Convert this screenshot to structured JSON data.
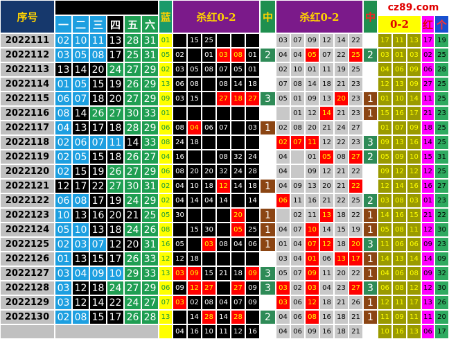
{
  "header": {
    "serial": "序号",
    "ball_columns": [
      "一",
      "二",
      "三",
      "四",
      "五",
      "六"
    ],
    "blue": "蓝",
    "block1_title": "杀红0-2",
    "block1_hit": "中",
    "block2_title": "杀红0-2",
    "block2_hit": "中",
    "logo": "cz89.com",
    "block3_title": "0-2",
    "block3_col4": "红",
    "block3_col5": "个"
  },
  "ball_zone_colors": [
    "#1d9fe0",
    "#000000",
    "#1f9e52"
  ],
  "hit_colors": {
    "1": "#8b4513",
    "2": "#2e8b57",
    "3": "#2e8b57"
  },
  "rows": [
    {
      "issue": "2022111",
      "reds": [
        "02",
        "10",
        "11",
        "13",
        "28",
        "31"
      ],
      "blue": "01",
      "kill1": [
        null,
        "15",
        "25",
        null,
        null,
        null
      ],
      "hit1": null,
      "kill2": [
        "03",
        "07",
        "09",
        "12",
        "14",
        "22"
      ],
      "hit2": null,
      "extra": [
        "17",
        "11",
        "13",
        "17",
        "19"
      ]
    },
    {
      "issue": "2022112",
      "reds": [
        "03",
        "05",
        "08",
        "17",
        "25",
        "31"
      ],
      "blue": "05",
      "kill1": [
        "02",
        null,
        "01",
        "03",
        "08",
        "01"
      ],
      "hit1": 2,
      "kill2": [
        "04",
        "04",
        "05",
        "07",
        "22",
        "25"
      ],
      "hit2": 2,
      "extra": [
        "03",
        "01",
        "03",
        "02",
        "25"
      ]
    },
    {
      "issue": "2022113",
      "reds": [
        "13",
        "14",
        "20",
        "24",
        "27",
        "29"
      ],
      "blue": "02",
      "kill1": [
        "03",
        "05",
        "08",
        "07",
        "05",
        "01"
      ],
      "hit1": null,
      "kill2": [
        "02",
        "10",
        "01",
        "11",
        "19",
        "25"
      ],
      "hit2": null,
      "extra": [
        "04",
        "06",
        "09",
        "06",
        "28"
      ]
    },
    {
      "issue": "2022114",
      "reds": [
        "01",
        "05",
        "15",
        "19",
        "26",
        "29"
      ],
      "blue": "13",
      "kill1": [
        "06",
        "08",
        null,
        "08",
        "14",
        "18"
      ],
      "hit1": null,
      "kill2": [
        "07",
        "08",
        "14",
        "18",
        "21",
        "23"
      ],
      "hit2": null,
      "extra": [
        "12",
        "13",
        "09",
        "27",
        "25"
      ]
    },
    {
      "issue": "2022115",
      "reds": [
        "06",
        "07",
        "18",
        "20",
        "27",
        "29"
      ],
      "blue": "09",
      "kill1": [
        "03",
        "15",
        null,
        "27",
        "18",
        "27"
      ],
      "hit1": 3,
      "kill2": [
        "05",
        "01",
        "09",
        "13",
        "20",
        "23"
      ],
      "hit2": 1,
      "extra": [
        "01",
        "10",
        "14",
        "11",
        "25"
      ]
    },
    {
      "issue": "2022116",
      "reds": [
        "08",
        "14",
        "26",
        "27",
        "30",
        "33"
      ],
      "blue": "01",
      "kill1": [
        null,
        null,
        null,
        null,
        null,
        null
      ],
      "hit1": null,
      "kill2": [
        null,
        "01",
        "12",
        "14",
        "21",
        "23"
      ],
      "hit2": 1,
      "extra": [
        "15",
        "16",
        "17",
        "21",
        "23"
      ]
    },
    {
      "issue": "2022117",
      "reds": [
        "04",
        "13",
        "17",
        "18",
        "28",
        "29"
      ],
      "blue": "06",
      "kill1": [
        "08",
        "04",
        "06",
        "07",
        null,
        "03"
      ],
      "hit1": 1,
      "kill2": [
        "02",
        "08",
        "20",
        "21",
        "24",
        "27"
      ],
      "hit2": null,
      "extra": [
        "01",
        "07",
        "09",
        "18",
        "25"
      ]
    },
    {
      "issue": "2022118",
      "reds": [
        "02",
        "06",
        "07",
        "11",
        "14",
        "33"
      ],
      "blue": "08",
      "kill1": [
        "24",
        "18",
        null,
        null,
        null,
        null
      ],
      "hit1": null,
      "kill2": [
        "02",
        "07",
        "11",
        "12",
        "22",
        "23"
      ],
      "hit2": 3,
      "extra": [
        "09",
        "13",
        "16",
        "14",
        "25"
      ]
    },
    {
      "issue": "2022119",
      "reds": [
        "02",
        "05",
        "15",
        "18",
        "26",
        "27"
      ],
      "blue": "04",
      "kill1": [
        "16",
        null,
        null,
        "08",
        "32",
        "24"
      ],
      "hit1": null,
      "kill2": [
        "04",
        null,
        "01",
        "05",
        "08",
        "27"
      ],
      "hit2": 2,
      "extra": [
        "05",
        "09",
        "10",
        "15",
        "31"
      ]
    },
    {
      "issue": "2022120",
      "reds": [
        "02",
        "15",
        "19",
        "26",
        "27",
        "29"
      ],
      "blue": "06",
      "kill1": [
        "08",
        "20",
        "20",
        "32",
        "24",
        "28"
      ],
      "hit1": null,
      "kill2": [
        "04",
        null,
        "09",
        "12",
        "21",
        "22"
      ],
      "hit2": null,
      "extra": [
        "09",
        "12",
        "12",
        "12",
        "25"
      ]
    },
    {
      "issue": "2022121",
      "reds": [
        "12",
        "17",
        "22",
        "27",
        "30",
        "31"
      ],
      "blue": "02",
      "kill1": [
        "04",
        "10",
        "18",
        "12",
        "14",
        "18"
      ],
      "hit1": 1,
      "kill2": [
        "04",
        "09",
        "13",
        "20",
        "21",
        "22"
      ],
      "hit2": null,
      "extra": [
        "12",
        "14",
        "16",
        "16",
        "27"
      ]
    },
    {
      "issue": "2022122",
      "reds": [
        "06",
        "08",
        "17",
        "19",
        "24",
        "29"
      ],
      "blue": "02",
      "kill1": [
        "04",
        "14",
        "04",
        "14",
        null,
        "14"
      ],
      "hit1": null,
      "kill2": [
        "06",
        "11",
        "16",
        "21",
        "22",
        "25"
      ],
      "hit2": 2,
      "extra": [
        "03",
        "08",
        "03",
        "01",
        "23"
      ]
    },
    {
      "issue": "2022123",
      "reds": [
        "10",
        "13",
        "16",
        "20",
        "21",
        "25"
      ],
      "blue": "05",
      "kill1": [
        "30",
        null,
        null,
        null,
        "20",
        null
      ],
      "hit1": 1,
      "kill2": [
        null,
        "02",
        "11",
        "13",
        "18",
        "22"
      ],
      "hit2": 1,
      "extra": [
        "14",
        "16",
        "15",
        "21",
        "22"
      ]
    },
    {
      "issue": "2022124",
      "reds": [
        "05",
        "10",
        "13",
        "18",
        "24",
        "26"
      ],
      "blue": "08",
      "kill1": [
        null,
        "15",
        "30",
        null,
        "05",
        "25"
      ],
      "hit1": 1,
      "kill2": [
        "04",
        "07",
        "10",
        "14",
        "15",
        "19"
      ],
      "hit2": 1,
      "extra": [
        "05",
        "08",
        "11",
        "12",
        "30"
      ]
    },
    {
      "issue": "2022125",
      "reds": [
        "02",
        "03",
        "07",
        "12",
        "20",
        "31"
      ],
      "blue": "16",
      "kill1": [
        "05",
        null,
        "03",
        "08",
        "04",
        "06"
      ],
      "hit1": 1,
      "kill2": [
        "01",
        "04",
        "07",
        "12",
        "18",
        "20"
      ],
      "hit2": 3,
      "extra": [
        "11",
        "06",
        "06",
        "09",
        "23"
      ]
    },
    {
      "issue": "2022126",
      "reds": [
        "01",
        "13",
        "15",
        "17",
        "26",
        "33"
      ],
      "blue": "12",
      "kill1": [
        "12",
        "18",
        null,
        null,
        null,
        null
      ],
      "hit1": null,
      "kill2": [
        "03",
        "04",
        "01",
        "06",
        "13",
        "17"
      ],
      "hit2": 1,
      "extra": [
        "14",
        "13",
        "14",
        "14",
        "09"
      ]
    },
    {
      "issue": "2022127",
      "reds": [
        "03",
        "04",
        "09",
        "10",
        "29",
        "33"
      ],
      "blue": "13",
      "kill1": [
        "03",
        "09",
        "15",
        "21",
        "18",
        "09"
      ],
      "hit1": 3,
      "kill2": [
        "05",
        "07",
        "09",
        "11",
        "20",
        "22"
      ],
      "hit2": 1,
      "extra": [
        "04",
        "06",
        "08",
        "09",
        "32"
      ]
    },
    {
      "issue": "2022128",
      "reds": [
        "03",
        "12",
        "18",
        "24",
        "27",
        "29"
      ],
      "blue": "06",
      "kill1": [
        "09",
        "12",
        "27",
        null,
        "27",
        "09"
      ],
      "hit1": 3,
      "kill2": [
        "03",
        "02",
        "03",
        "04",
        "23",
        "27"
      ],
      "hit2": 3,
      "extra": [
        "06",
        "08",
        "12",
        "12",
        "30"
      ]
    },
    {
      "issue": "2022129",
      "reds": [
        "03",
        "12",
        "14",
        "22",
        "24",
        "27"
      ],
      "blue": "07",
      "kill1": [
        "03",
        "02",
        "08",
        "04",
        "07",
        "09"
      ],
      "hit1": null,
      "kill2": [
        "03",
        "06",
        "12",
        "18",
        "21",
        "26"
      ],
      "hit2": 1,
      "extra": [
        "12",
        "11",
        "17",
        "13",
        "26"
      ]
    },
    {
      "issue": "2022130",
      "reds": [
        "02",
        "08",
        "15",
        "17",
        "26",
        "28"
      ],
      "blue": "13",
      "kill1": [
        null,
        "14",
        "28",
        "14",
        "28",
        null
      ],
      "hit1": 2,
      "kill2": [
        "04",
        "06",
        "08",
        "16",
        "18",
        "21"
      ],
      "hit2": 1,
      "extra": [
        "11",
        "09",
        "11",
        "11",
        "20"
      ]
    }
  ],
  "bottom_row": {
    "kill1": [
      "04",
      "16",
      "10",
      "11",
      "12",
      "16"
    ],
    "kill2": [
      "04",
      "06",
      "09",
      "16",
      "18",
      "21"
    ],
    "extra": [
      "10",
      "16",
      "13",
      "06",
      "17"
    ]
  }
}
